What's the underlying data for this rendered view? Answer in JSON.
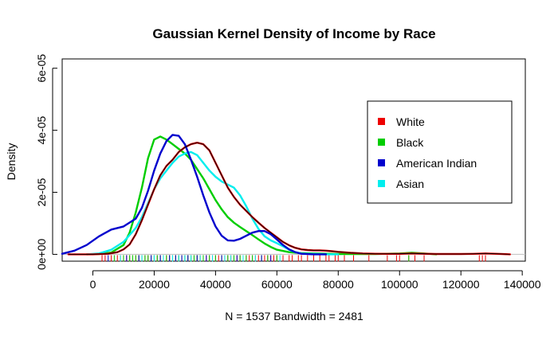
{
  "chart_data": {
    "type": "line",
    "title": "Gaussian Kernel Density of Income by Race",
    "xlabel": "N = 1537   Bandwidth = 2481",
    "ylabel": "Density",
    "xlim": [
      -10000,
      141000
    ],
    "ylim": [
      -2.2e-06,
      6.3e-05
    ],
    "x_ticks": [
      0,
      20000,
      40000,
      60000,
      80000,
      100000,
      120000,
      140000
    ],
    "x_tick_labels": [
      "0",
      "20000",
      "40000",
      "60000",
      "80000",
      "100000",
      "120000",
      "140000"
    ],
    "y_ticks": [
      0,
      2e-05,
      4e-05,
      6e-05
    ],
    "y_tick_labels": [
      "0e+00",
      "2e-05",
      "4e-05",
      "6e-05"
    ],
    "legend_position": "top-right",
    "grid": false,
    "baseline_color": "#bebebe",
    "series": [
      {
        "name": "White",
        "color": "#ee0000",
        "x": [
          -8000,
          0,
          5000,
          8000,
          10000,
          12000,
          14000,
          16000,
          18000,
          20000,
          22000,
          24000,
          26000,
          28000,
          30000,
          32000,
          34000,
          36000,
          38000,
          40000,
          42000,
          44000,
          46000,
          48000,
          50000,
          52000,
          54000,
          56000,
          58000,
          60000,
          62000,
          64000,
          66000,
          68000,
          70000,
          72000,
          74000,
          76000,
          78000,
          80000,
          84000,
          88000,
          92000,
          96000,
          100000,
          104000,
          108000,
          112000,
          116000,
          120000,
          124000,
          128000,
          132000,
          136000
        ],
        "y": [
          0,
          0,
          2e-07,
          7e-07,
          1.6e-06,
          3.2e-06,
          6.5e-06,
          1.1e-05,
          1.6e-05,
          2.1e-05,
          2.55e-05,
          2.85e-05,
          3.05e-05,
          3.3e-05,
          3.45e-05,
          3.55e-05,
          3.6e-05,
          3.55e-05,
          3.35e-05,
          2.95e-05,
          2.55e-05,
          2.15e-05,
          1.85e-05,
          1.6e-05,
          1.4e-05,
          1.2e-05,
          1.02e-05,
          8.5e-06,
          7e-06,
          5.5e-06,
          4e-06,
          2.9e-06,
          2.1e-06,
          1.6e-06,
          1.4e-06,
          1.3e-06,
          1.3e-06,
          1.2e-06,
          1e-06,
          8e-07,
          5e-07,
          3e-07,
          2e-07,
          1.5e-07,
          1.5e-07,
          3e-07,
          2e-07,
          1.2e-07,
          1e-07,
          1.2e-07,
          1.5e-07,
          3e-07,
          1.5e-07,
          0
        ]
      },
      {
        "name": "Black",
        "color": "#00cd00",
        "x": [
          -2000,
          2000,
          6000,
          10000,
          12000,
          14000,
          16000,
          18000,
          20000,
          22000,
          24000,
          26000,
          28000,
          30000,
          32000,
          34000,
          36000,
          38000,
          40000,
          42000,
          44000,
          46000,
          48000,
          50000,
          52000,
          54000,
          56000,
          58000,
          60000,
          64000,
          68000,
          72000,
          76000,
          80000,
          84000,
          88000,
          92000,
          96000,
          100000,
          104000,
          108000,
          112000
        ],
        "y": [
          0,
          1e-07,
          6e-07,
          3e-06,
          7e-06,
          1.35e-05,
          2.15e-05,
          3.1e-05,
          3.7e-05,
          3.8e-05,
          3.7e-05,
          3.55e-05,
          3.4e-05,
          3.25e-05,
          3.05e-05,
          2.75e-05,
          2.45e-05,
          2.1e-05,
          1.75e-05,
          1.45e-05,
          1.2e-05,
          1.02e-05,
          8.8e-06,
          7.5e-06,
          6.2e-06,
          4.8e-06,
          3.5e-06,
          2.4e-06,
          1.5e-06,
          7e-07,
          4e-07,
          3e-07,
          2e-07,
          1e-07,
          1e-07,
          1e-07,
          1e-07,
          2e-07,
          3e-07,
          5e-07,
          3e-07,
          0
        ]
      },
      {
        "name": "American Indian",
        "color": "#0000cd",
        "x": [
          -10000,
          -6000,
          -2000,
          2000,
          6000,
          10000,
          14000,
          16000,
          18000,
          20000,
          22000,
          24000,
          26000,
          28000,
          30000,
          32000,
          34000,
          36000,
          38000,
          40000,
          42000,
          44000,
          46000,
          48000,
          50000,
          52000,
          54000,
          56000,
          58000,
          60000,
          62000,
          64000,
          66000,
          68000,
          72000,
          76000
        ],
        "y": [
          2e-07,
          1.2e-06,
          3e-06,
          5.8e-06,
          8e-06,
          9e-06,
          1.15e-05,
          1.5e-05,
          2.05e-05,
          2.7e-05,
          3.25e-05,
          3.65e-05,
          3.85e-05,
          3.82e-05,
          3.55e-05,
          3.05e-05,
          2.5e-05,
          1.9e-05,
          1.35e-05,
          9e-06,
          6e-06,
          4.5e-06,
          4.4e-06,
          5e-06,
          6e-06,
          7e-06,
          7.5e-06,
          7.5e-06,
          6.5e-06,
          4.8e-06,
          3e-06,
          1.6e-06,
          7e-07,
          2e-07,
          0,
          0
        ]
      },
      {
        "name": "Asian",
        "color": "#00eeee",
        "x": [
          -2000,
          2000,
          6000,
          10000,
          14000,
          16000,
          18000,
          20000,
          22000,
          24000,
          26000,
          28000,
          30000,
          32000,
          34000,
          36000,
          38000,
          40000,
          42000,
          44000,
          46000,
          48000,
          50000,
          52000,
          54000,
          56000,
          58000,
          60000,
          62000,
          64000,
          66000,
          68000,
          72000,
          76000,
          80000
        ],
        "y": [
          0,
          3e-07,
          1.5e-06,
          4e-06,
          8.5e-06,
          1.2e-05,
          1.65e-05,
          2.1e-05,
          2.45e-05,
          2.7e-05,
          2.95e-05,
          3.15e-05,
          3.25e-05,
          3.3e-05,
          3.2e-05,
          2.95e-05,
          2.7e-05,
          2.5e-05,
          2.35e-05,
          2.25e-05,
          2.15e-05,
          1.9e-05,
          1.55e-05,
          1.15e-05,
          8.2e-06,
          5.8e-06,
          4.5e-06,
          3.6e-06,
          2.6e-06,
          1.5e-06,
          7e-07,
          3e-07,
          1e-07,
          0,
          0
        ]
      }
    ],
    "rug": {
      "colors": [
        "#ee0000",
        "#00cd00",
        "#0000cd",
        "#00eeee"
      ],
      "values": [
        [
          3000,
          4000,
          6000,
          8000,
          9000,
          10000,
          11000,
          12000,
          13000,
          14000,
          15000,
          16000,
          17000,
          18000,
          19000,
          20000,
          21000,
          22000,
          23000,
          24000,
          25000,
          26000,
          27000,
          28000,
          29000,
          30000,
          31000,
          32000,
          33000,
          34000,
          35000,
          36000,
          37000,
          38000,
          39000,
          40000,
          41000,
          42000,
          43000,
          44000,
          45000,
          46000,
          47000,
          48000,
          49000,
          50000,
          51000,
          52000,
          53000,
          54000,
          55000,
          56000,
          57000,
          58000,
          59000,
          60000,
          62000,
          64000,
          65000,
          67000,
          68000,
          70000,
          72000,
          74000,
          76000,
          77000,
          79000,
          80000,
          82000,
          85000,
          90000,
          96000,
          99000,
          100000,
          103000,
          105000,
          108000,
          126000,
          127000,
          128000
        ],
        [
          7000,
          10000,
          12000,
          13000,
          14000,
          15000,
          16000,
          17000,
          18000,
          19000,
          20000,
          21000,
          22000,
          23000,
          24000,
          25000,
          26000,
          27000,
          28000,
          29000,
          30000,
          31000,
          32000,
          33000,
          34000,
          36000,
          38000,
          40000,
          42000,
          44000,
          46000,
          48000,
          50000,
          52000,
          55000,
          57000,
          60000,
          103000
        ],
        [
          5000,
          11000,
          15000,
          19000,
          22000,
          25000,
          27000,
          29000,
          31000,
          34000,
          37000,
          42000,
          47000,
          55000,
          58000
        ],
        [
          9000,
          16000,
          20000,
          23000,
          26000,
          28000,
          30000,
          32000,
          35000,
          39000,
          43000,
          45000,
          49000,
          53000,
          61000
        ]
      ]
    }
  }
}
